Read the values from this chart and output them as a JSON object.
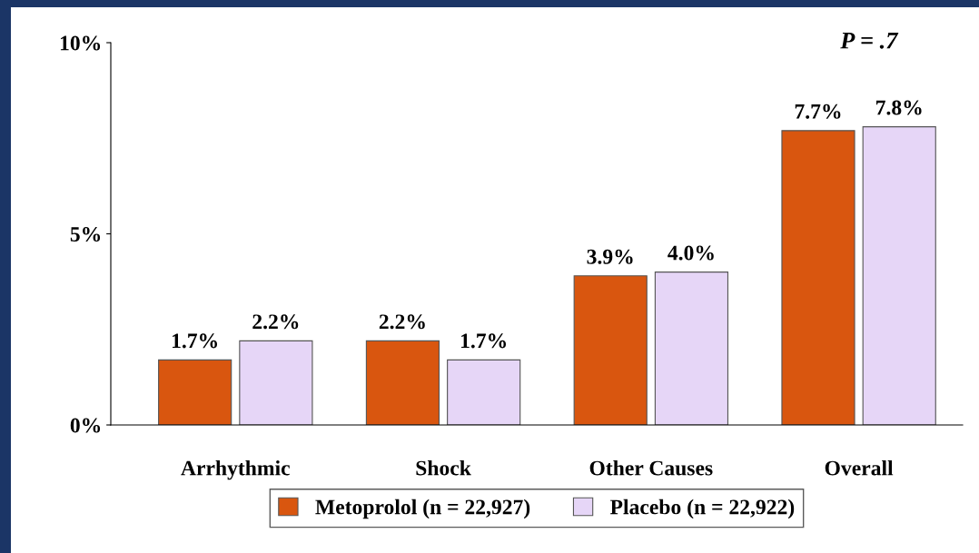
{
  "chart_data": {
    "type": "bar",
    "categories": [
      "Arrhythmic",
      "Shock",
      "Other Causes",
      "Overall"
    ],
    "series": [
      {
        "name": "Metoprolol (n = 22,927)",
        "color": "#d9560f",
        "values": [
          1.7,
          2.2,
          3.9,
          7.7
        ],
        "value_labels": [
          "1.7%",
          "2.2%",
          "3.9%",
          "7.7%"
        ]
      },
      {
        "name": "Placebo (n = 22,922)",
        "color": "#e6d6f7",
        "values": [
          2.2,
          1.7,
          4.0,
          7.8
        ],
        "value_labels": [
          "2.2%",
          "1.7%",
          "4.0%",
          "7.8%"
        ]
      }
    ],
    "ylim": [
      0,
      10
    ],
    "yticks": [
      {
        "value": 0,
        "label": "0%"
      },
      {
        "value": 5,
        "label": "5%"
      },
      {
        "value": 10,
        "label": "10%"
      }
    ],
    "annotations": [
      "P = .7"
    ],
    "grid": false,
    "legend": "bottom"
  }
}
